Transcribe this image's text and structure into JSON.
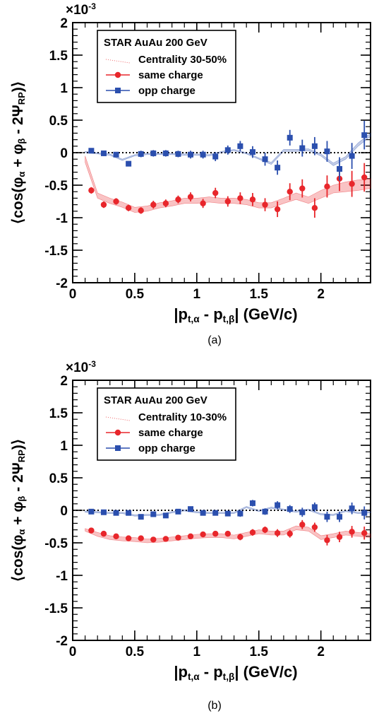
{
  "chart_data": [
    {
      "type": "scatter",
      "panel_label": "(a)",
      "title": "",
      "legend": {
        "header": "STAR  AuAu 200 GeV",
        "band_label": "Centrality 30-50%",
        "placement": "top-left"
      },
      "xlabel": "|p_t,α - p_t,β|  (GeV/c)",
      "ylabel": "⟨cos(φ_α + φ_β - 2Ψ_RP)⟩",
      "y_multiplier": "×10^-3",
      "xlim": [
        0,
        2.4
      ],
      "ylim": [
        -2,
        2
      ],
      "x_ticks": [
        "0",
        "0.5",
        "1",
        "1.5",
        "2"
      ],
      "y_ticks": [
        "-2",
        "-1.5",
        "-1",
        "-0.5",
        "0",
        "0.5",
        "1",
        "1.5",
        "2"
      ],
      "x_tick_values": [
        0,
        0.5,
        1,
        1.5,
        2
      ],
      "y_tick_values": [
        -2,
        -1.5,
        -1,
        -0.5,
        0,
        0.5,
        1,
        1.5,
        2
      ],
      "zero_line": true,
      "grid": false,
      "series": [
        {
          "name": "same charge",
          "color": "#e8262b",
          "marker": "circle",
          "x": [
            0.15,
            0.25,
            0.35,
            0.45,
            0.55,
            0.65,
            0.75,
            0.85,
            0.95,
            1.05,
            1.15,
            1.25,
            1.35,
            1.45,
            1.55,
            1.65,
            1.75,
            1.85,
            1.95,
            2.05,
            2.15,
            2.25,
            2.35
          ],
          "y": [
            -0.58,
            -0.8,
            -0.75,
            -0.85,
            -0.89,
            -0.8,
            -0.78,
            -0.72,
            -0.68,
            -0.78,
            -0.62,
            -0.75,
            -0.7,
            -0.72,
            -0.8,
            -0.87,
            -0.6,
            -0.55,
            -0.85,
            -0.52,
            -0.4,
            -0.48,
            -0.38
          ],
          "err": [
            0.05,
            0.05,
            0.05,
            0.05,
            0.05,
            0.06,
            0.06,
            0.06,
            0.07,
            0.07,
            0.08,
            0.08,
            0.09,
            0.1,
            0.1,
            0.12,
            0.13,
            0.14,
            0.15,
            0.17,
            0.19,
            0.2,
            0.22
          ],
          "band": {
            "x": [
              0.1,
              0.2,
              0.3,
              0.4,
              0.5,
              0.6,
              0.7,
              0.8,
              0.9,
              1.0,
              1.1,
              1.2,
              1.3,
              1.4,
              1.5,
              1.6,
              1.7,
              1.8,
              1.9,
              2.0,
              2.1,
              2.2,
              2.3,
              2.4
            ],
            "lo": [
              -0.15,
              -0.7,
              -0.78,
              -0.84,
              -0.92,
              -0.9,
              -0.85,
              -0.82,
              -0.78,
              -0.78,
              -0.76,
              -0.78,
              -0.78,
              -0.8,
              -0.85,
              -0.85,
              -0.78,
              -0.72,
              -0.78,
              -0.7,
              -0.62,
              -0.6,
              -0.58,
              -0.55
            ],
            "hi": [
              -0.05,
              -0.62,
              -0.7,
              -0.76,
              -0.84,
              -0.82,
              -0.77,
              -0.74,
              -0.7,
              -0.7,
              -0.68,
              -0.7,
              -0.7,
              -0.72,
              -0.77,
              -0.77,
              -0.7,
              -0.62,
              -0.68,
              -0.58,
              -0.5,
              -0.45,
              -0.42,
              -0.4
            ]
          }
        },
        {
          "name": "opp charge",
          "color": "#2b4fae",
          "marker": "square",
          "x": [
            0.15,
            0.25,
            0.35,
            0.45,
            0.55,
            0.65,
            0.75,
            0.85,
            0.95,
            1.05,
            1.15,
            1.25,
            1.35,
            1.45,
            1.55,
            1.65,
            1.75,
            1.85,
            1.95,
            2.05,
            2.15,
            2.25,
            2.35
          ],
          "y": [
            0.03,
            -0.01,
            -0.03,
            -0.17,
            -0.02,
            -0.01,
            -0.01,
            -0.02,
            -0.03,
            -0.03,
            -0.06,
            0.04,
            0.1,
            0.01,
            -0.1,
            -0.23,
            0.23,
            0.07,
            0.1,
            0.02,
            -0.25,
            -0.05,
            0.27
          ],
          "err": [
            0.04,
            0.04,
            0.04,
            0.04,
            0.05,
            0.05,
            0.05,
            0.05,
            0.06,
            0.06,
            0.07,
            0.07,
            0.08,
            0.09,
            0.1,
            0.11,
            0.12,
            0.13,
            0.14,
            0.16,
            0.18,
            0.2,
            0.22
          ],
          "band": {
            "x": [
              0.1,
              0.2,
              0.3,
              0.4,
              0.5,
              0.6,
              0.7,
              0.8,
              0.9,
              1.0,
              1.1,
              1.2,
              1.3,
              1.4,
              1.5,
              1.6,
              1.7,
              1.8,
              1.9,
              2.0,
              2.1,
              2.2,
              2.3,
              2.4
            ],
            "lo": [
              0.0,
              -0.02,
              -0.04,
              -0.12,
              -0.05,
              -0.03,
              -0.03,
              -0.03,
              -0.04,
              -0.04,
              -0.05,
              0.0,
              0.03,
              -0.02,
              -0.1,
              -0.18,
              0.02,
              0.02,
              0.03,
              -0.05,
              -0.2,
              -0.1,
              0.1,
              0.25
            ],
            "hi": [
              0.02,
              0.0,
              -0.02,
              -0.1,
              -0.03,
              -0.01,
              -0.01,
              -0.01,
              -0.02,
              -0.02,
              -0.03,
              0.02,
              0.05,
              0.0,
              -0.08,
              -0.15,
              0.05,
              0.05,
              0.06,
              -0.02,
              -0.16,
              -0.06,
              0.15,
              0.3
            ]
          }
        }
      ]
    },
    {
      "type": "scatter",
      "panel_label": "(b)",
      "title": "",
      "legend": {
        "header": "STAR  AuAu 200 GeV",
        "band_label": "Centrality 10-30%",
        "placement": "top-left"
      },
      "xlabel": "|p_t,α - p_t,β|  (GeV/c)",
      "ylabel": "⟨cos(φ_α + φ_β - 2Ψ_RP)⟩",
      "y_multiplier": "×10^-3",
      "xlim": [
        0,
        2.4
      ],
      "ylim": [
        -2,
        2
      ],
      "x_ticks": [
        "0",
        "0.5",
        "1",
        "1.5",
        "2"
      ],
      "y_ticks": [
        "-2",
        "-1.5",
        "-1",
        "-0.5",
        "0",
        "0.5",
        "1",
        "1.5",
        "2"
      ],
      "x_tick_values": [
        0,
        0.5,
        1,
        1.5,
        2
      ],
      "y_tick_values": [
        -2,
        -1.5,
        -1,
        -0.5,
        0,
        0.5,
        1,
        1.5,
        2
      ],
      "zero_line": true,
      "grid": false,
      "series": [
        {
          "name": "same charge",
          "color": "#e8262b",
          "marker": "circle",
          "x": [
            0.15,
            0.25,
            0.35,
            0.45,
            0.55,
            0.65,
            0.75,
            0.85,
            0.95,
            1.05,
            1.15,
            1.25,
            1.35,
            1.45,
            1.55,
            1.65,
            1.75,
            1.85,
            1.95,
            2.05,
            2.15,
            2.25,
            2.35
          ],
          "y": [
            -0.31,
            -0.36,
            -0.4,
            -0.43,
            -0.43,
            -0.45,
            -0.44,
            -0.42,
            -0.4,
            -0.37,
            -0.36,
            -0.36,
            -0.41,
            -0.34,
            -0.3,
            -0.35,
            -0.36,
            -0.22,
            -0.26,
            -0.46,
            -0.41,
            -0.33,
            -0.35
          ],
          "err": [
            0.03,
            0.03,
            0.03,
            0.03,
            0.03,
            0.03,
            0.03,
            0.03,
            0.04,
            0.04,
            0.04,
            0.04,
            0.05,
            0.05,
            0.05,
            0.06,
            0.06,
            0.07,
            0.07,
            0.08,
            0.08,
            0.09,
            0.1
          ],
          "band": {
            "x": [
              0.1,
              0.2,
              0.3,
              0.4,
              0.5,
              0.6,
              0.7,
              0.8,
              0.9,
              1.0,
              1.1,
              1.2,
              1.3,
              1.4,
              1.5,
              1.6,
              1.7,
              1.8,
              1.9,
              2.0,
              2.1,
              2.2,
              2.3,
              2.4
            ],
            "lo": [
              -0.32,
              -0.4,
              -0.45,
              -0.47,
              -0.48,
              -0.5,
              -0.49,
              -0.47,
              -0.45,
              -0.43,
              -0.42,
              -0.42,
              -0.44,
              -0.4,
              -0.36,
              -0.38,
              -0.38,
              -0.3,
              -0.32,
              -0.45,
              -0.42,
              -0.38,
              -0.4,
              -0.42
            ],
            "hi": [
              -0.28,
              -0.34,
              -0.39,
              -0.41,
              -0.42,
              -0.44,
              -0.43,
              -0.41,
              -0.39,
              -0.37,
              -0.36,
              -0.36,
              -0.38,
              -0.34,
              -0.3,
              -0.32,
              -0.32,
              -0.24,
              -0.26,
              -0.39,
              -0.36,
              -0.32,
              -0.34,
              -0.36
            ]
          }
        },
        {
          "name": "opp charge",
          "color": "#2b4fae",
          "marker": "square",
          "x": [
            0.15,
            0.25,
            0.35,
            0.45,
            0.55,
            0.65,
            0.75,
            0.85,
            0.95,
            1.05,
            1.15,
            1.25,
            1.35,
            1.45,
            1.55,
            1.65,
            1.75,
            1.85,
            1.95,
            2.05,
            2.15,
            2.25,
            2.35
          ],
          "y": [
            -0.02,
            -0.03,
            -0.04,
            -0.04,
            -0.1,
            -0.06,
            -0.08,
            -0.02,
            0.02,
            -0.04,
            -0.04,
            -0.05,
            -0.05,
            0.11,
            -0.02,
            0.08,
            0.02,
            -0.03,
            0.05,
            -0.1,
            -0.1,
            0.03,
            -0.04
          ],
          "err": [
            0.03,
            0.03,
            0.03,
            0.03,
            0.03,
            0.03,
            0.03,
            0.03,
            0.04,
            0.04,
            0.04,
            0.04,
            0.05,
            0.05,
            0.05,
            0.06,
            0.06,
            0.07,
            0.07,
            0.08,
            0.08,
            0.09,
            0.1
          ],
          "band": {
            "x": [
              0.1,
              0.2,
              0.3,
              0.4,
              0.5,
              0.6,
              0.7,
              0.8,
              0.9,
              1.0,
              1.1,
              1.2,
              1.3,
              1.4,
              1.5,
              1.6,
              1.7,
              1.8,
              1.9,
              2.0,
              2.1,
              2.2,
              2.3,
              2.4
            ],
            "lo": [
              -0.03,
              -0.04,
              -0.05,
              -0.05,
              -0.09,
              -0.08,
              -0.08,
              -0.04,
              -0.01,
              -0.04,
              -0.05,
              -0.05,
              -0.05,
              0.04,
              -0.02,
              0.03,
              0.0,
              -0.03,
              0.0,
              -0.07,
              -0.08,
              -0.02,
              -0.05,
              -0.04
            ],
            "hi": [
              -0.01,
              -0.02,
              -0.03,
              -0.03,
              -0.07,
              -0.06,
              -0.06,
              -0.02,
              0.01,
              -0.02,
              -0.03,
              -0.03,
              -0.03,
              0.06,
              0.0,
              0.05,
              0.02,
              -0.01,
              0.02,
              -0.05,
              -0.06,
              0.0,
              -0.03,
              -0.02
            ]
          }
        }
      ]
    }
  ]
}
